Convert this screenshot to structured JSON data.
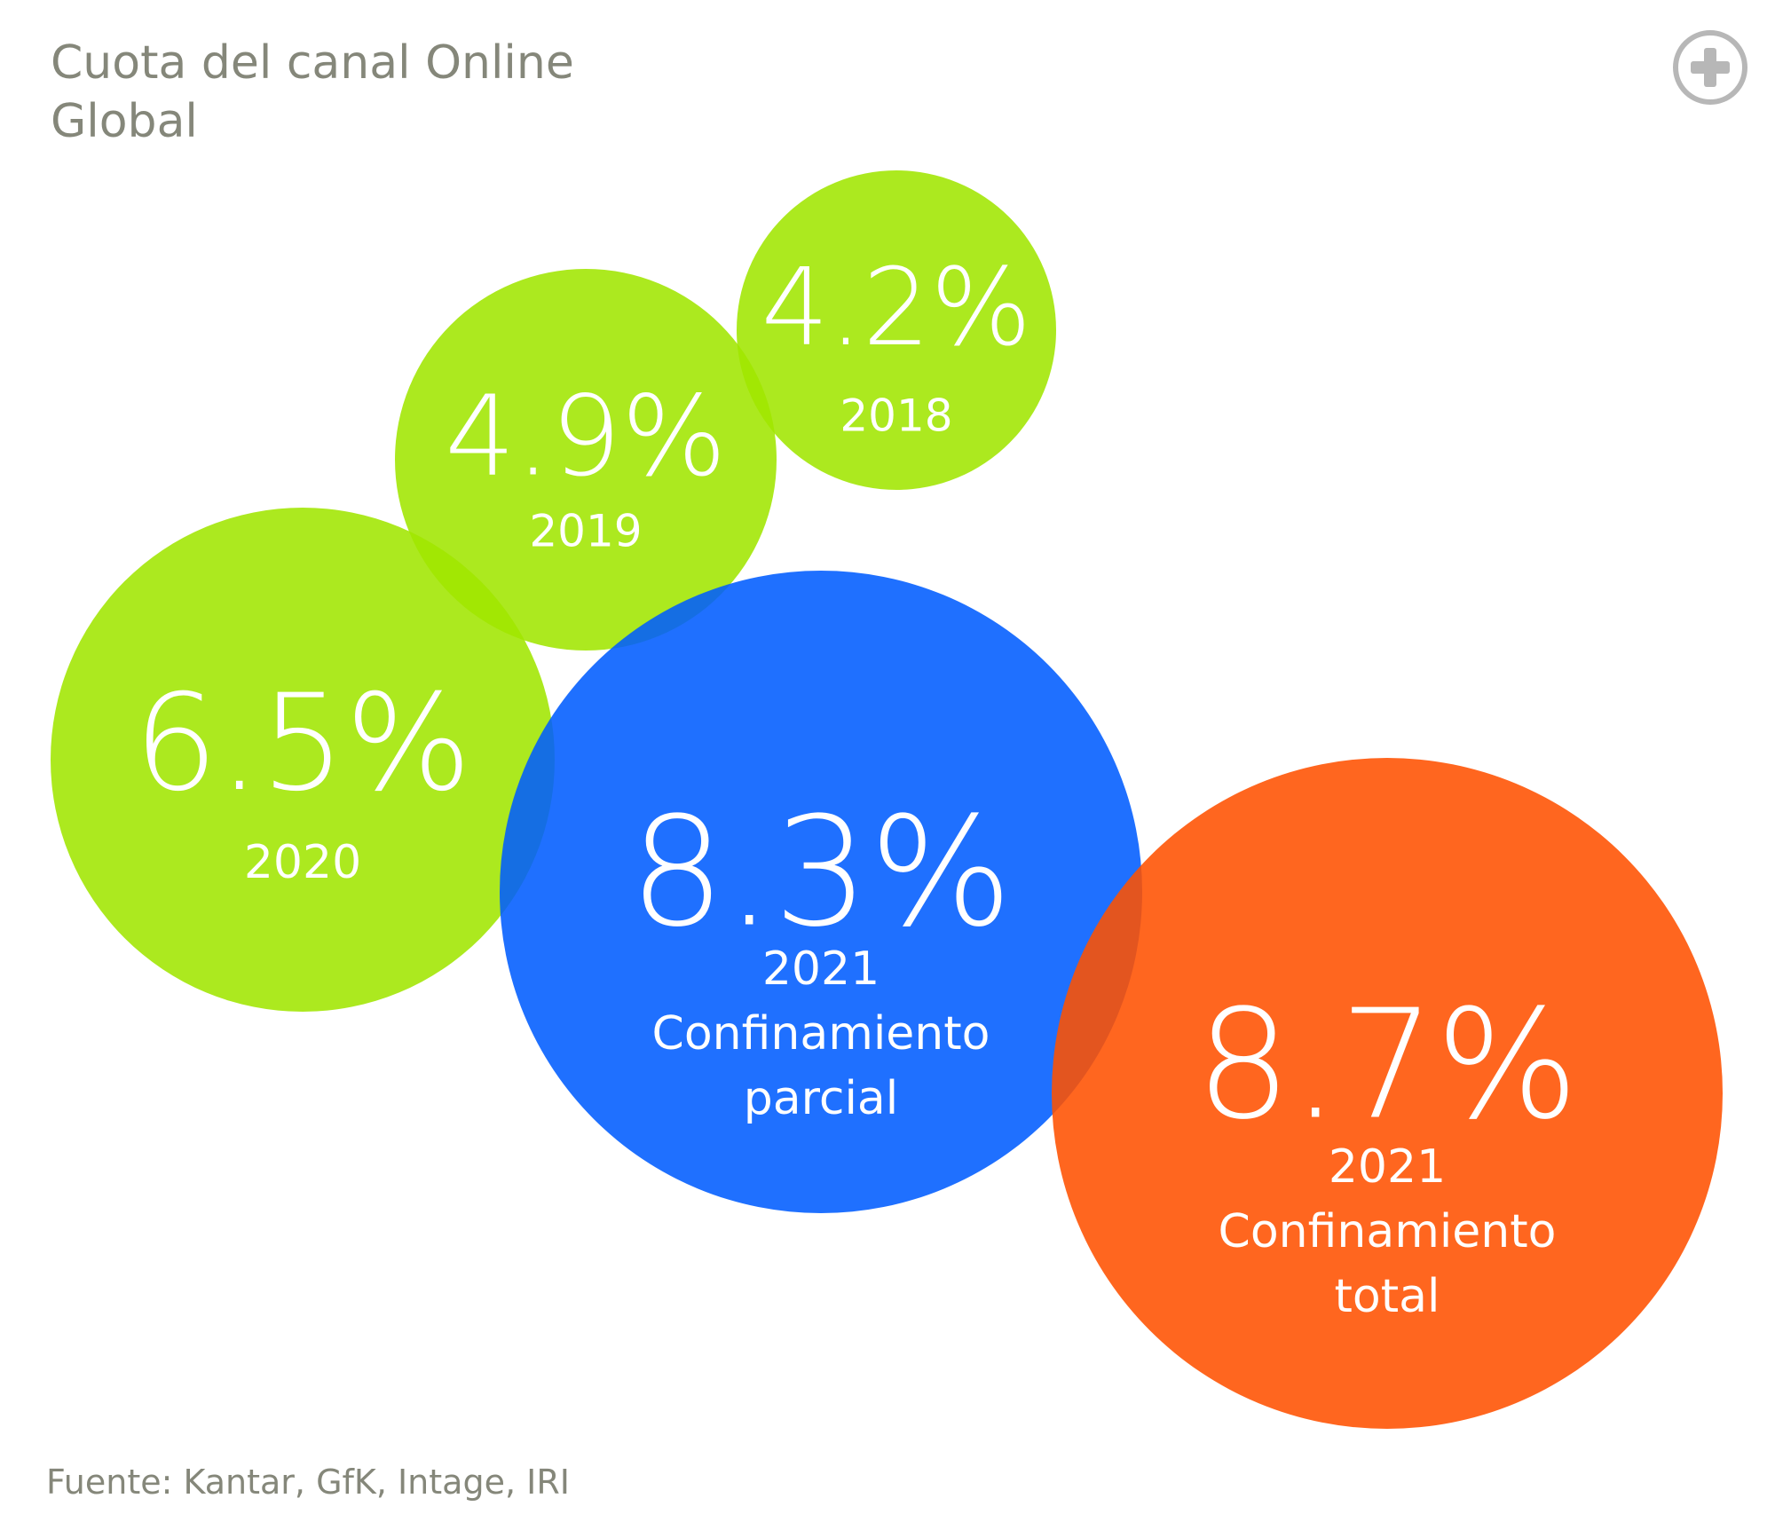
{
  "title": {
    "line1": "Cuota del canal Online",
    "line2": "Global"
  },
  "expand_button": {
    "icon": "plus-circle-icon",
    "color": "#b7b7b7"
  },
  "source": "Fuente: Kantar, GfK, Intage, IRI",
  "chart_data": {
    "type": "bubble",
    "title": "Cuota del canal Online Global",
    "unit": "%",
    "series": [
      {
        "name": "2018",
        "label": "4.2%",
        "value": 4.2,
        "sublabel": [
          "2018"
        ],
        "color": "#a0e600"
      },
      {
        "name": "2019",
        "label": "4.9%",
        "value": 4.9,
        "sublabel": [
          "2019"
        ],
        "color": "#a0e600"
      },
      {
        "name": "2020",
        "label": "6.5%",
        "value": 6.5,
        "sublabel": [
          "2020"
        ],
        "color": "#a0e600"
      },
      {
        "name": "2021 Confinamiento parcial",
        "label": "8.3%",
        "value": 8.3,
        "sublabel": [
          "2021",
          "Confinamiento",
          "parcial"
        ],
        "color": "#005cff"
      },
      {
        "name": "2021 Confinamiento total",
        "label": "8.7%",
        "value": 8.7,
        "sublabel": [
          "2021",
          "Confinamiento",
          "total"
        ],
        "color": "#ff5100"
      }
    ],
    "text_color": "#ffffff"
  }
}
